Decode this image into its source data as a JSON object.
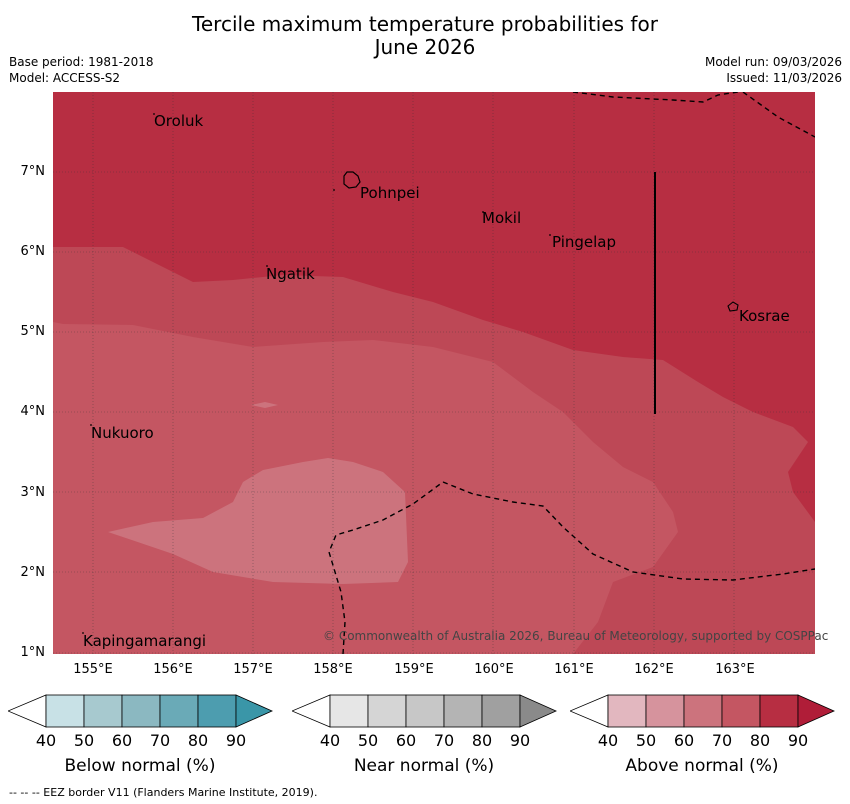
{
  "title": {
    "line1": "Tercile maximum temperature probabilities for",
    "line2": "June 2026"
  },
  "meta": {
    "base_period": "Base period: 1981-2018",
    "model": "Model: ACCESS-S2",
    "model_run": "Model run: 09/03/2026",
    "issued": "Issued: 11/03/2026"
  },
  "lat_labels": [
    "7°N",
    "6°N",
    "5°N",
    "4°N",
    "3°N",
    "2°N",
    "1°N"
  ],
  "lon_labels": [
    "155°E",
    "156°E",
    "157°E",
    "158°E",
    "159°E",
    "160°E",
    "161°E",
    "162°E",
    "163°E"
  ],
  "places": {
    "oroluk": "Oroluk",
    "pohnpei": "Pohnpei",
    "mokil": "Mokil",
    "pingelap": "Pingelap",
    "ngatik": "Ngatik",
    "kosrae": "Kosrae",
    "nukuoro": "Nukuoro",
    "kapingamarangi": "Kapingamarangi"
  },
  "copyright": "© Commonwealth of Australia 2026, Bureau of Meteorology, supported by COSPPac",
  "legend": {
    "ticks": [
      "40",
      "50",
      "60",
      "70",
      "80",
      "90"
    ],
    "below": {
      "title": "Below normal (%)",
      "colors": [
        "#c8e1e6",
        "#a7c9cf",
        "#8bb8c1",
        "#6aaab7",
        "#4d9daf",
        "#3a96a8"
      ]
    },
    "near": {
      "title": "Near normal (%)",
      "colors": [
        "#e6e6e6",
        "#d5d5d5",
        "#c7c7c7",
        "#b4b4b4",
        "#a0a0a0",
        "#8a8a8a"
      ]
    },
    "above": {
      "title": "Above normal (%)",
      "colors": [
        "#e2b7bf",
        "#d6939d",
        "#cc737d",
        "#c45662",
        "#b72e42",
        "#b01d38"
      ]
    }
  },
  "map_colors": {
    "above_50": "#cc737d",
    "above_60": "#c45662",
    "above_70": "#bd4856",
    "above_80": "#b72e42",
    "above_90": "#b01d38"
  },
  "footer": "--  --  -- EEZ border V11 (Flanders Marine Institute, 2019)."
}
